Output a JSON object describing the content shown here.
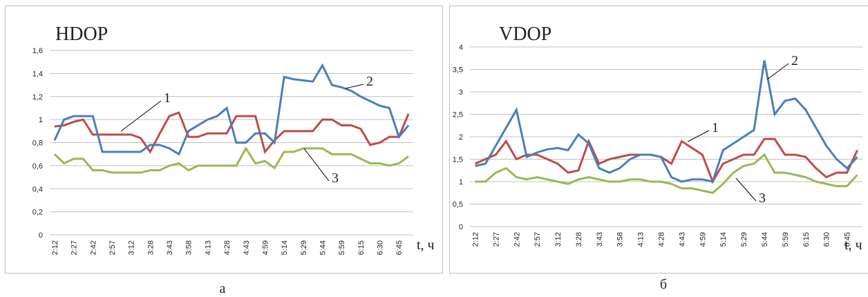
{
  "chart_data": [
    {
      "type": "line",
      "title": "HDOP",
      "xlabel": "t, ч",
      "caption": "а",
      "categories": [
        "2:12",
        null,
        "2:27",
        null,
        "2:42",
        null,
        "2:57",
        null,
        "3:12",
        null,
        "3:28",
        null,
        "3:43",
        null,
        "3:58",
        null,
        "4:13",
        null,
        "4:28",
        null,
        "4:43",
        null,
        "4:59",
        null,
        "5:14",
        null,
        "5:29",
        null,
        "5:44",
        null,
        "5:59",
        null,
        "6:15",
        null,
        "6:30",
        null,
        "6:45",
        null
      ],
      "ylim": [
        0,
        1.6
      ],
      "yticks": [
        0,
        {
          "value": 0.2,
          "label": "0,2"
        },
        {
          "value": 0.4,
          "label": "0,4"
        },
        {
          "value": 0.6,
          "label": "0,6"
        },
        {
          "value": 0.8,
          "label": "0,8"
        },
        1,
        {
          "value": 1.2,
          "label": "1,2"
        },
        {
          "value": 1.4,
          "label": "1,4"
        },
        {
          "value": 1.6,
          "label": "1,6"
        }
      ],
      "grid": true,
      "series": [
        {
          "name": "1",
          "color": "#be4b48",
          "values": [
            0.94,
            0.95,
            0.98,
            1.0,
            0.87,
            0.87,
            0.87,
            0.87,
            0.87,
            0.84,
            0.72,
            0.88,
            1.03,
            1.06,
            0.85,
            0.85,
            0.88,
            0.88,
            0.88,
            1.03,
            1.03,
            1.03,
            0.72,
            0.82,
            0.9,
            0.9,
            0.9,
            0.9,
            1.0,
            1.0,
            0.95,
            0.95,
            0.92,
            0.78,
            0.8,
            0.85,
            0.85,
            1.05
          ]
        },
        {
          "name": "2",
          "color": "#4a7ebb",
          "values": [
            0.82,
            1.0,
            1.03,
            1.03,
            1.03,
            0.72,
            0.72,
            0.72,
            0.72,
            0.72,
            0.78,
            0.78,
            0.75,
            0.7,
            0.9,
            0.95,
            1.0,
            1.03,
            1.1,
            0.8,
            0.8,
            0.88,
            0.88,
            0.8,
            1.37,
            1.35,
            1.34,
            1.33,
            1.47,
            1.3,
            1.28,
            1.25,
            1.2,
            1.16,
            1.12,
            1.1,
            0.85,
            0.95
          ]
        },
        {
          "name": "3",
          "color": "#98b954",
          "values": [
            0.7,
            0.62,
            0.66,
            0.66,
            0.56,
            0.56,
            0.54,
            0.54,
            0.54,
            0.54,
            0.56,
            0.56,
            0.6,
            0.62,
            0.56,
            0.6,
            0.6,
            0.6,
            0.6,
            0.6,
            0.75,
            0.62,
            0.64,
            0.58,
            0.72,
            0.72,
            0.75,
            0.75,
            0.75,
            0.7,
            0.7,
            0.7,
            0.66,
            0.62,
            0.62,
            0.6,
            0.62,
            0.68
          ]
        }
      ]
    },
    {
      "type": "line",
      "title": "VDOP",
      "xlabel": "t, ч",
      "caption": "б",
      "categories": [
        "2:12",
        null,
        "2:27",
        null,
        "2:42",
        null,
        "2:57",
        null,
        "3:12",
        null,
        "3:28",
        null,
        "3:43",
        null,
        "3:58",
        null,
        "4:13",
        null,
        "4:28",
        null,
        "4:43",
        null,
        "4:59",
        null,
        "5:14",
        null,
        "5:29",
        null,
        "5:44",
        null,
        "5:59",
        null,
        "6:15",
        null,
        "6:30",
        null,
        "6:45",
        null
      ],
      "ylim": [
        0,
        4
      ],
      "yticks": [
        0,
        {
          "value": 0.5,
          "label": "0,5"
        },
        1,
        {
          "value": 1.5,
          "label": "1,5"
        },
        2,
        {
          "value": 2.5,
          "label": "2,5"
        },
        3,
        {
          "value": 3.5,
          "label": "3,5"
        },
        4
      ],
      "grid": true,
      "series": [
        {
          "name": "1",
          "color": "#be4b48",
          "values": [
            1.4,
            1.5,
            1.6,
            1.9,
            1.5,
            1.6,
            1.6,
            1.5,
            1.4,
            1.2,
            1.25,
            1.9,
            1.4,
            1.5,
            1.55,
            1.6,
            1.6,
            1.6,
            1.55,
            1.4,
            1.9,
            1.75,
            1.6,
            1.0,
            1.4,
            1.5,
            1.6,
            1.6,
            1.95,
            1.95,
            1.6,
            1.6,
            1.55,
            1.3,
            1.1,
            1.2,
            1.2,
            1.7
          ]
        },
        {
          "name": "2",
          "color": "#4a7ebb",
          "values": [
            1.35,
            1.4,
            1.8,
            2.2,
            2.6,
            1.55,
            1.65,
            1.72,
            1.75,
            1.7,
            2.05,
            1.85,
            1.3,
            1.2,
            1.3,
            1.5,
            1.6,
            1.6,
            1.55,
            1.1,
            1.0,
            1.05,
            1.05,
            1.0,
            1.7,
            1.85,
            2.0,
            2.15,
            3.7,
            2.5,
            2.8,
            2.85,
            2.6,
            2.2,
            1.8,
            1.5,
            1.3,
            1.55
          ]
        },
        {
          "name": "3",
          "color": "#98b954",
          "values": [
            1.0,
            1.0,
            1.2,
            1.3,
            1.1,
            1.05,
            1.1,
            1.05,
            1.0,
            0.95,
            1.05,
            1.1,
            1.05,
            1.0,
            1.0,
            1.05,
            1.05,
            1.0,
            1.0,
            0.95,
            0.85,
            0.85,
            0.8,
            0.75,
            0.95,
            1.2,
            1.35,
            1.4,
            1.6,
            1.2,
            1.2,
            1.15,
            1.1,
            1.0,
            0.95,
            0.9,
            0.9,
            1.15
          ]
        }
      ]
    }
  ]
}
